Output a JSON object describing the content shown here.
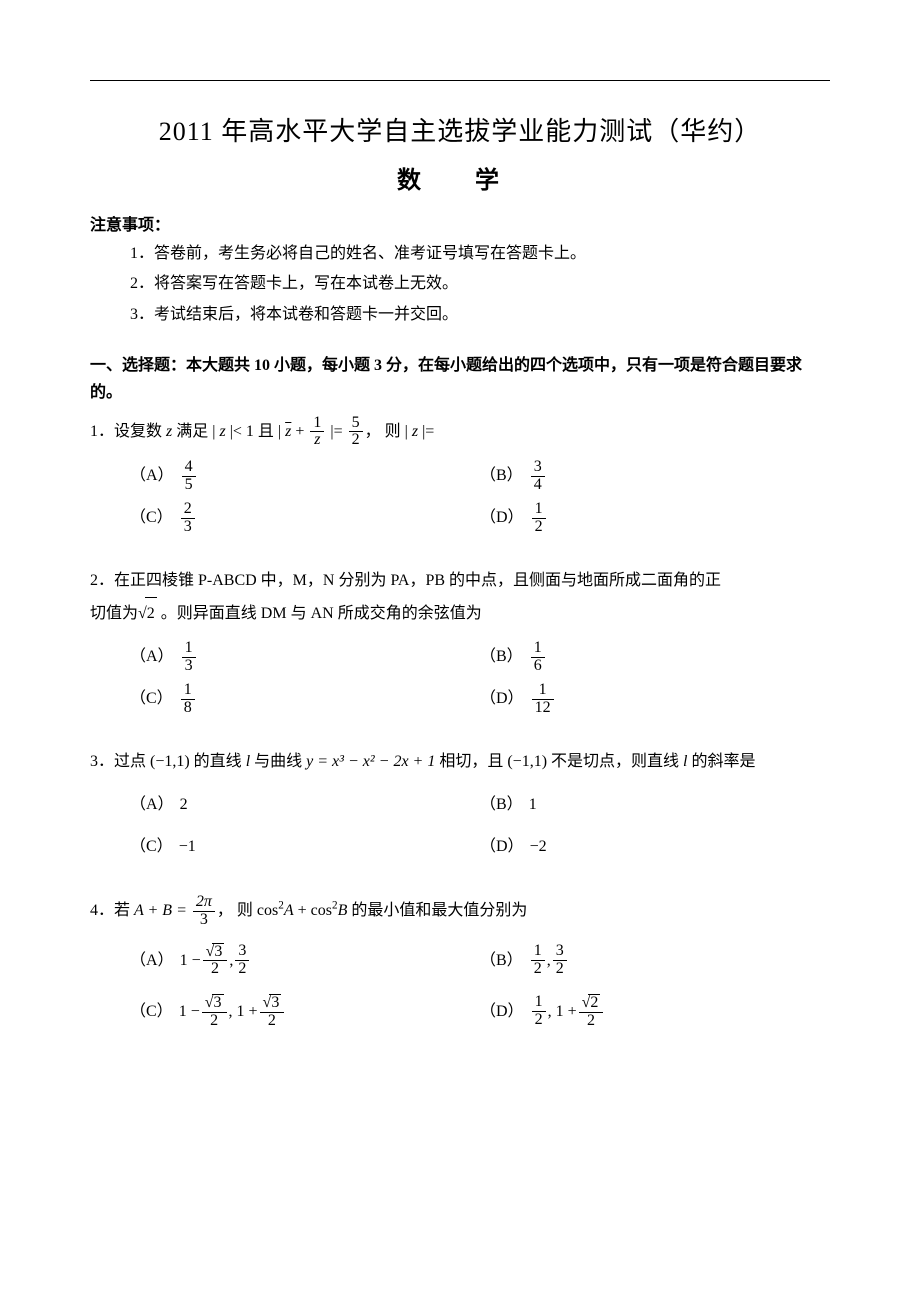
{
  "title": "2011 年高水平大学自主选拔学业能力测试（华约）",
  "subject": "数 学",
  "notice_head": "注意事项：",
  "notices": [
    "1．答卷前，考生务必将自己的姓名、准考证号填写在答题卡上。",
    "2．将答案写在答题卡上，写在本试卷上无效。",
    "3．考试结束后，将本试卷和答题卡一并交回。"
  ],
  "section_head": "一、选择题：本大题共 10 小题，每小题 3 分，在每小题给出的四个选项中，只有一项是符合题目要求的。",
  "q1": {
    "pre": "1．设复数 ",
    "mid1": " 满足 | ",
    "mid2": " |< 1 且 | ",
    "mid3": " |= ",
    "tail": "， 则 | ",
    "end": " |=",
    "zlabel": "z",
    "zbar": "z̄",
    "plus": " + ",
    "one": "1",
    "rhs_num": "5",
    "rhs_den": "2",
    "optA_l": "（A）",
    "optA_num": "4",
    "optA_den": "5",
    "optB_l": "（B）",
    "optB_num": "3",
    "optB_den": "4",
    "optC_l": "（C）",
    "optC_num": "2",
    "optC_den": "3",
    "optD_l": "（D）",
    "optD_num": "1",
    "optD_den": "2"
  },
  "q2": {
    "stem1": "2．在正四棱锥 P-ABCD 中，M，N 分别为 PA，PB 的中点，且侧面与地面所成二面角的正",
    "stem2_pre": "切值为",
    "stem2_post": " 。则异面直线 DM 与 AN 所成交角的余弦值为",
    "sqrtval": "2",
    "optA_l": "（A）",
    "optA_num": "1",
    "optA_den": "3",
    "optB_l": "（B）",
    "optB_num": "1",
    "optB_den": "6",
    "optC_l": "（C）",
    "optC_num": "1",
    "optC_den": "8",
    "optD_l": "（D）",
    "optD_num": "1",
    "optD_den": "12"
  },
  "q3": {
    "stem_pre": "3．过点 (−1,1) 的直线 ",
    "l": "l",
    "stem_mid": " 与曲线 ",
    "curve": "y = x³ − x² − 2x + 1",
    "stem_mid2": " 相切，且 (−1,1) 不是切点，则直线 ",
    "stem_post": " 的斜率是",
    "optA_l": "（A）",
    "optA": "2",
    "optB_l": "（B）",
    "optB": "1",
    "optC_l": "（C）",
    "optC": "−1",
    "optD_l": "（D）",
    "optD": "−2"
  },
  "q4": {
    "stem_pre": "4．若 ",
    "ab": "A + B = ",
    "num": "2π",
    "den": "3",
    "stem_mid": "， 则 cos",
    "A": "A",
    "plus": " + cos",
    "B": "B",
    "stem_post": " 的最小值和最大值分别为",
    "sq": "2",
    "optA_l": "（A）",
    "optA_1a": "1 − ",
    "optA_1num": "3",
    "optA_1den": "2",
    "optA_comma": ", ",
    "optA_2num": "3",
    "optA_2den": "2",
    "optB_l": "（B）",
    "optB_1num": "1",
    "optB_1den": "2",
    "optB_comma": ", ",
    "optB_2num": "3",
    "optB_2den": "2",
    "optC_l": "（C）",
    "optC_1a": "1 − ",
    "optC_1num": "3",
    "optC_1den": "2",
    "optC_comma": ", 1 + ",
    "optC_2num": "3",
    "optC_2den": "2",
    "optD_l": "（D）",
    "optD_1num": "1",
    "optD_1den": "2",
    "optD_comma": ", 1 + ",
    "optD_2num": "2",
    "optD_2den": "2"
  }
}
